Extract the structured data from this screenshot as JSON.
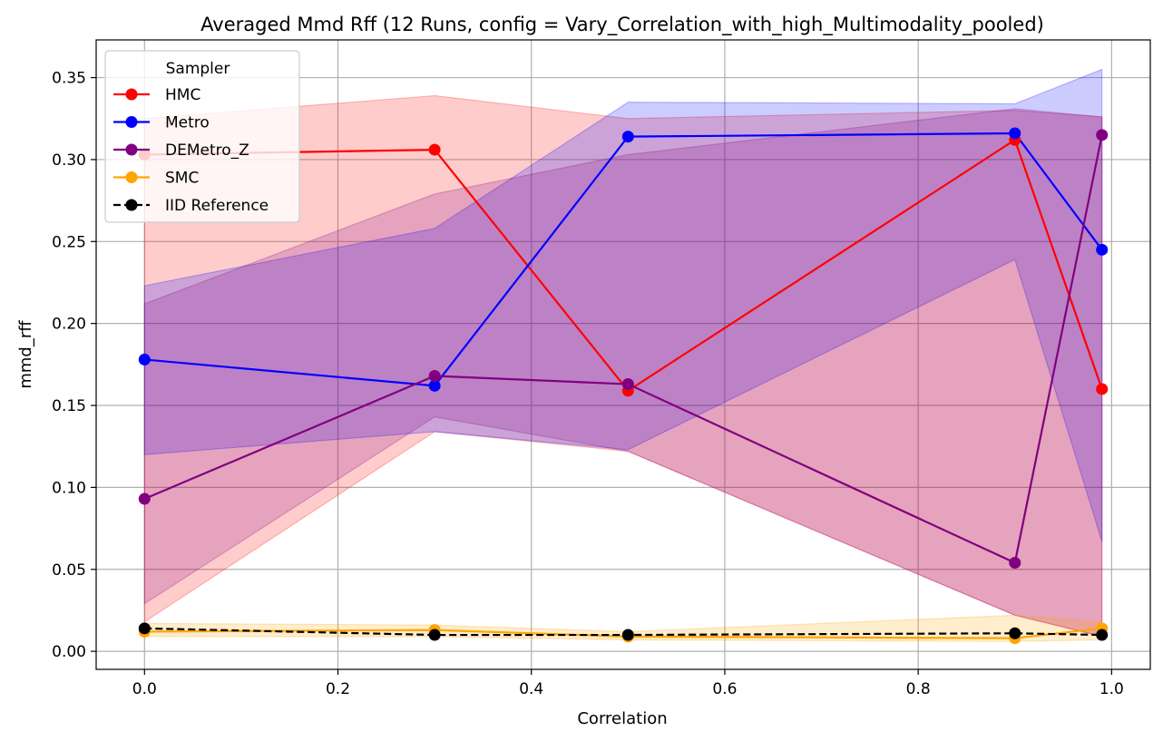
{
  "chart_data": {
    "type": "line",
    "title": "Averaged Mmd Rff (12 Runs, config = Vary_Correlation_with_high_Multimodality_pooled)",
    "xlabel": "Correlation",
    "ylabel": "mmd_rff",
    "xlim": [
      -0.05,
      1.04
    ],
    "ylim": [
      -0.011,
      0.373
    ],
    "x": [
      0.0,
      0.3,
      0.5,
      0.9,
      0.99
    ],
    "xticks": [
      "0.0",
      "0.2",
      "0.4",
      "0.6",
      "0.8",
      "1.0"
    ],
    "yticks": [
      "0.00",
      "0.05",
      "0.10",
      "0.15",
      "0.20",
      "0.25",
      "0.30",
      "0.35"
    ],
    "grid": true,
    "legend": {
      "title": "Sampler",
      "position": "top-left"
    },
    "series": [
      {
        "name": "HMC",
        "color": "#ff0000",
        "dashed": false,
        "values": [
          0.303,
          0.306,
          0.159,
          0.312,
          0.16
        ],
        "band_lower": [
          0.018,
          0.134,
          0.122,
          0.022,
          0.009
        ],
        "band_upper": [
          0.325,
          0.339,
          0.325,
          0.33,
          0.326
        ]
      },
      {
        "name": "Metro",
        "color": "#0000ff",
        "dashed": false,
        "values": [
          0.178,
          0.162,
          0.314,
          0.316,
          0.245
        ],
        "band_lower": [
          0.12,
          0.134,
          0.123,
          0.239,
          0.067
        ],
        "band_upper": [
          0.223,
          0.258,
          0.335,
          0.334,
          0.355
        ]
      },
      {
        "name": "DEMetro_Z",
        "color": "#800080",
        "dashed": false,
        "values": [
          0.093,
          0.168,
          0.163,
          0.054,
          0.315
        ],
        "band_lower": [
          0.029,
          0.143,
          0.122,
          0.022,
          0.009
        ],
        "band_upper": [
          0.212,
          0.279,
          0.303,
          0.331,
          0.326
        ]
      },
      {
        "name": "SMC",
        "color": "#ffa500",
        "dashed": false,
        "values": [
          0.012,
          0.013,
          0.009,
          0.008,
          0.014
        ],
        "band_lower": [
          0.009,
          0.009,
          0.007,
          0.006,
          0.007
        ],
        "band_upper": [
          0.017,
          0.016,
          0.012,
          0.022,
          0.018
        ]
      },
      {
        "name": "IID Reference",
        "color": "#000000",
        "dashed": true,
        "values": [
          0.014,
          0.01,
          0.01,
          0.011,
          0.01
        ]
      }
    ]
  }
}
